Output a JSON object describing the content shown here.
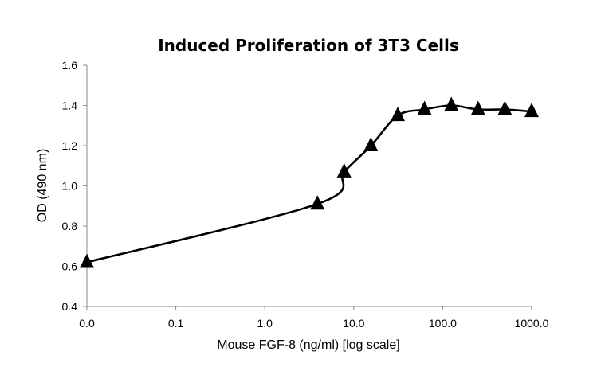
{
  "chart_data": {
    "type": "line",
    "title": "Induced Proliferation of 3T3 Cells",
    "xlabel": "Mouse FGF-8 (ng/ml) [log scale]",
    "ylabel": "OD (490 nm)",
    "x_scale": "log",
    "xlim": [
      0.01,
      1000
    ],
    "ylim": [
      0.4,
      1.6
    ],
    "x_tick_values": [
      0.01,
      0.1,
      1,
      10,
      100,
      1000
    ],
    "x_tick_labels": [
      "0.0",
      "0.1",
      "1.0",
      "10.0",
      "100.0",
      "1000.0"
    ],
    "y_tick_values": [
      0.4,
      0.6,
      0.8,
      1.0,
      1.2,
      1.4,
      1.6
    ],
    "y_tick_labels": [
      "0.4",
      "0.6",
      "0.8",
      "1.0",
      "1.2",
      "1.4",
      "1.6"
    ],
    "grid": false,
    "legend": "none",
    "marker": "triangle",
    "line_color": "#000000",
    "series": [
      {
        "x": [
          0.01,
          3.9,
          7.8,
          15.6,
          31.25,
          62.5,
          125,
          250,
          500,
          1000
        ],
        "values": [
          0.62,
          0.91,
          1.07,
          1.2,
          1.35,
          1.38,
          1.4,
          1.38,
          1.38,
          1.37
        ]
      }
    ]
  }
}
